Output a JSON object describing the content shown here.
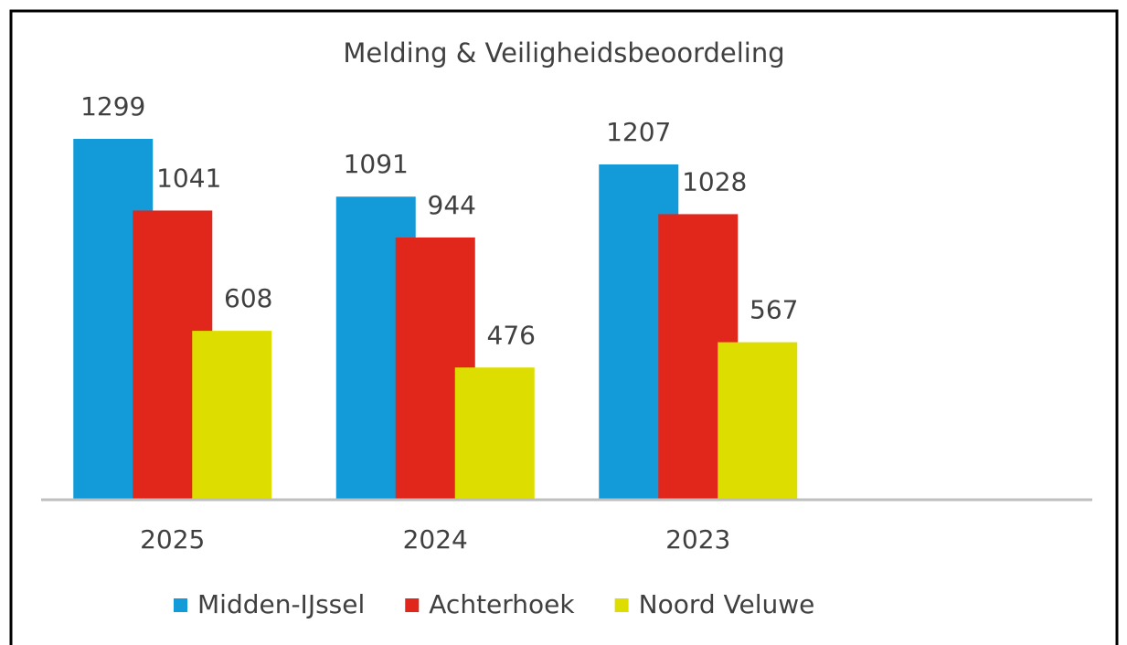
{
  "chart_data": {
    "type": "bar",
    "title": "Melding & Veiligheidsbeoordeling",
    "categories": [
      "2025",
      "2024",
      "2023",
      null
    ],
    "series": [
      {
        "name": "Midden-IJssel",
        "color": "#139bd9",
        "values": [
          1299,
          1091,
          1207,
          null
        ]
      },
      {
        "name": "Achterhoek",
        "color": "#e1261c",
        "values": [
          1041,
          944,
          1028,
          null
        ]
      },
      {
        "name": "Noord Veluwe",
        "color": "#dedd00",
        "values": [
          608,
          476,
          567,
          null
        ]
      }
    ],
    "legend": "bottom"
  }
}
